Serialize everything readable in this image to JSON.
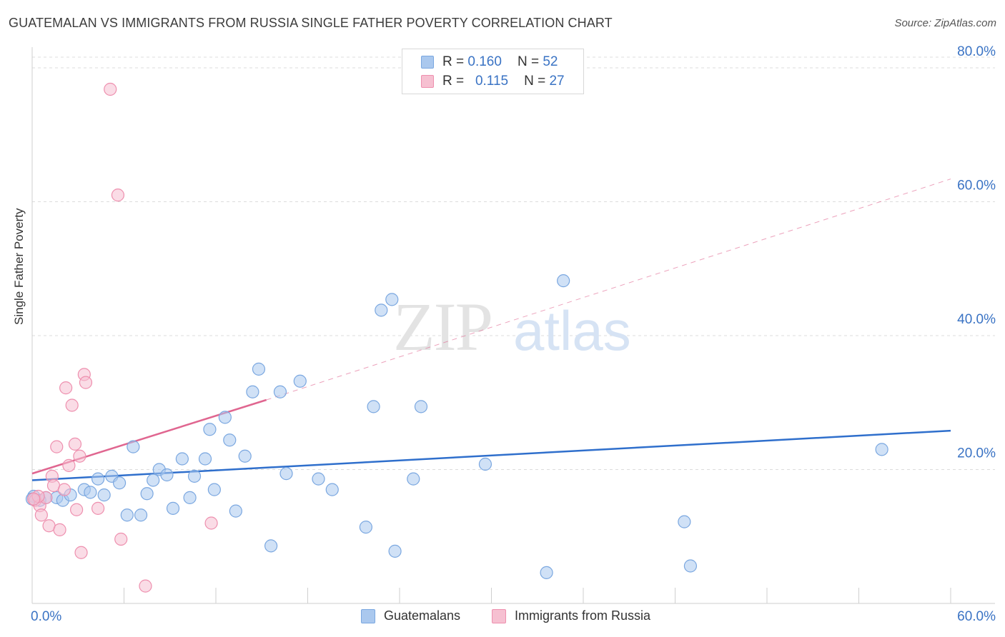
{
  "title": "GUATEMALAN VS IMMIGRANTS FROM RUSSIA SINGLE FATHER POVERTY CORRELATION CHART",
  "source": "Source: ZipAtlas.com",
  "watermark": {
    "zip": "ZIP",
    "atlas": "atlas"
  },
  "legend": {
    "rows": [
      {
        "r_label": "R =",
        "r_value": "0.160",
        "n_label": "N =",
        "n_value": "52"
      },
      {
        "r_label": "R =",
        "r_value": "0.115",
        "n_label": "N =",
        "n_value": "27"
      }
    ]
  },
  "bottom_legend": [
    "Guatemalans",
    "Immigrants from Russia"
  ],
  "colors": {
    "blue_fill": "#aac8ee",
    "blue_stroke": "#7aa7e0",
    "blue_line": "#2f6fcc",
    "pink_fill": "#f6c0d1",
    "pink_stroke": "#ee8fae",
    "pink_line": "#e06690",
    "axis_text": "#3a73c4",
    "grid": "#dcdcdc"
  },
  "chart_data": {
    "type": "scatter",
    "title": "GUATEMALAN VS IMMIGRANTS FROM RUSSIA SINGLE FATHER POVERTY CORRELATION CHART",
    "xlabel": "",
    "ylabel": "Single Father Poverty",
    "xlim": [
      0,
      60
    ],
    "ylim": [
      0,
      80
    ],
    "x_ticks": [
      "0.0%",
      "60.0%"
    ],
    "y_ticks": [
      "20.0%",
      "40.0%",
      "60.0%",
      "80.0%"
    ],
    "y_tick_values": [
      20,
      40,
      60,
      80
    ],
    "grid": true,
    "legend_position": "top-center",
    "series": [
      {
        "name": "Guatemalans",
        "r": 0.16,
        "n": 52,
        "points": [
          [
            0.1,
            16.0
          ],
          [
            0.5,
            15.4
          ],
          [
            0.9,
            15.8
          ],
          [
            1.6,
            15.8
          ],
          [
            2.0,
            15.4
          ],
          [
            2.5,
            16.2
          ],
          [
            3.4,
            17.0
          ],
          [
            3.8,
            16.6
          ],
          [
            4.3,
            18.6
          ],
          [
            4.7,
            16.2
          ],
          [
            5.2,
            19.0
          ],
          [
            5.7,
            18.0
          ],
          [
            6.2,
            13.2
          ],
          [
            6.6,
            23.4
          ],
          [
            7.1,
            13.2
          ],
          [
            7.5,
            16.4
          ],
          [
            7.9,
            18.4
          ],
          [
            8.3,
            20.0
          ],
          [
            8.8,
            19.2
          ],
          [
            9.2,
            14.2
          ],
          [
            9.8,
            21.6
          ],
          [
            10.3,
            15.8
          ],
          [
            10.6,
            19.0
          ],
          [
            11.3,
            21.6
          ],
          [
            11.6,
            26.0
          ],
          [
            11.9,
            17.0
          ],
          [
            12.6,
            27.8
          ],
          [
            12.9,
            24.4
          ],
          [
            13.3,
            13.8
          ],
          [
            13.9,
            22.0
          ],
          [
            14.4,
            31.6
          ],
          [
            14.8,
            35.0
          ],
          [
            15.6,
            8.6
          ],
          [
            16.2,
            31.6
          ],
          [
            16.6,
            19.4
          ],
          [
            17.5,
            33.2
          ],
          [
            18.7,
            18.6
          ],
          [
            19.6,
            17.0
          ],
          [
            21.8,
            11.4
          ],
          [
            22.3,
            29.4
          ],
          [
            22.8,
            43.8
          ],
          [
            23.5,
            45.4
          ],
          [
            23.7,
            7.8
          ],
          [
            24.9,
            18.6
          ],
          [
            25.4,
            29.4
          ],
          [
            29.6,
            20.8
          ],
          [
            33.6,
            4.6
          ],
          [
            34.7,
            48.2
          ],
          [
            42.6,
            12.2
          ],
          [
            43.0,
            5.6
          ],
          [
            55.5,
            23.0
          ],
          [
            0.0,
            15.6
          ]
        ]
      },
      {
        "name": "Immigrants from Russia",
        "r": 0.115,
        "n": 27,
        "points": [
          [
            0.2,
            15.4
          ],
          [
            0.5,
            14.6
          ],
          [
            0.6,
            13.2
          ],
          [
            0.9,
            15.8
          ],
          [
            1.1,
            11.6
          ],
          [
            1.3,
            19.0
          ],
          [
            1.4,
            17.6
          ],
          [
            1.6,
            23.4
          ],
          [
            1.8,
            11.0
          ],
          [
            2.1,
            17.0
          ],
          [
            2.2,
            32.2
          ],
          [
            2.4,
            20.6
          ],
          [
            2.6,
            29.6
          ],
          [
            2.8,
            23.8
          ],
          [
            2.9,
            14.0
          ],
          [
            3.1,
            22.0
          ],
          [
            3.2,
            7.6
          ],
          [
            3.4,
            34.2
          ],
          [
            3.5,
            33.0
          ],
          [
            4.3,
            14.2
          ],
          [
            5.1,
            76.8
          ],
          [
            5.6,
            61.0
          ],
          [
            5.8,
            9.6
          ],
          [
            7.4,
            2.6
          ],
          [
            11.7,
            12.0
          ],
          [
            0.4,
            16.0
          ],
          [
            0.1,
            15.6
          ]
        ]
      }
    ],
    "trend_lines": [
      {
        "series": "Guatemalans",
        "x": [
          0,
          60
        ],
        "y": [
          18.4,
          25.8
        ],
        "style": "solid"
      },
      {
        "series": "Immigrants from Russia",
        "x": [
          0,
          15.3
        ],
        "y": [
          19.4,
          30.4
        ],
        "style": "solid"
      },
      {
        "series": "Immigrants from Russia",
        "x": [
          15.3,
          60
        ],
        "y": [
          30.4,
          63.4
        ],
        "style": "dashed"
      }
    ]
  }
}
